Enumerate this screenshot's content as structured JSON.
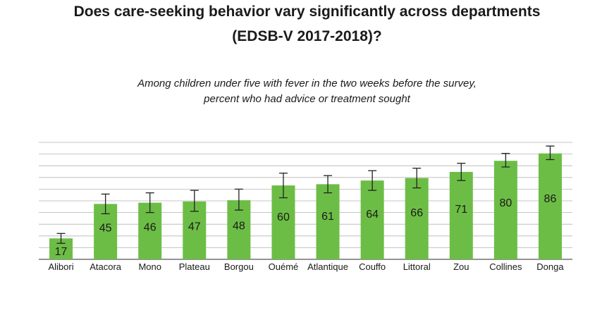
{
  "title_line1": "Does care-seeking behavior vary significantly across departments",
  "title_line2": "(EDSB-V 2017-2018)?",
  "subtitle_line1": "Among children under five with fever in the two weeks before the survey,",
  "subtitle_line2": "percent who had advice or treatment sought",
  "colors": {
    "bar": "#6cbd45",
    "grid": "#b3b3b3",
    "text": "#1a1a1a",
    "axis": "#555555"
  },
  "chart_data": {
    "type": "bar",
    "categories": [
      "Alibori",
      "Atacora",
      "Mono",
      "Plateau",
      "Borgou",
      "Ouémé",
      "Atlantique",
      "Couffo",
      "Littoral",
      "Zou",
      "Collines",
      "Donga"
    ],
    "values": [
      17,
      45,
      46,
      47,
      48,
      60,
      61,
      64,
      66,
      71,
      80,
      86
    ],
    "error_low": [
      13,
      37,
      38,
      39,
      40,
      50,
      54,
      56,
      58,
      64,
      75,
      81
    ],
    "error_high": [
      21,
      53,
      54,
      56,
      57,
      70,
      68,
      72,
      74,
      78,
      86,
      92
    ],
    "ylim": [
      0,
      95
    ],
    "grid": true
  }
}
